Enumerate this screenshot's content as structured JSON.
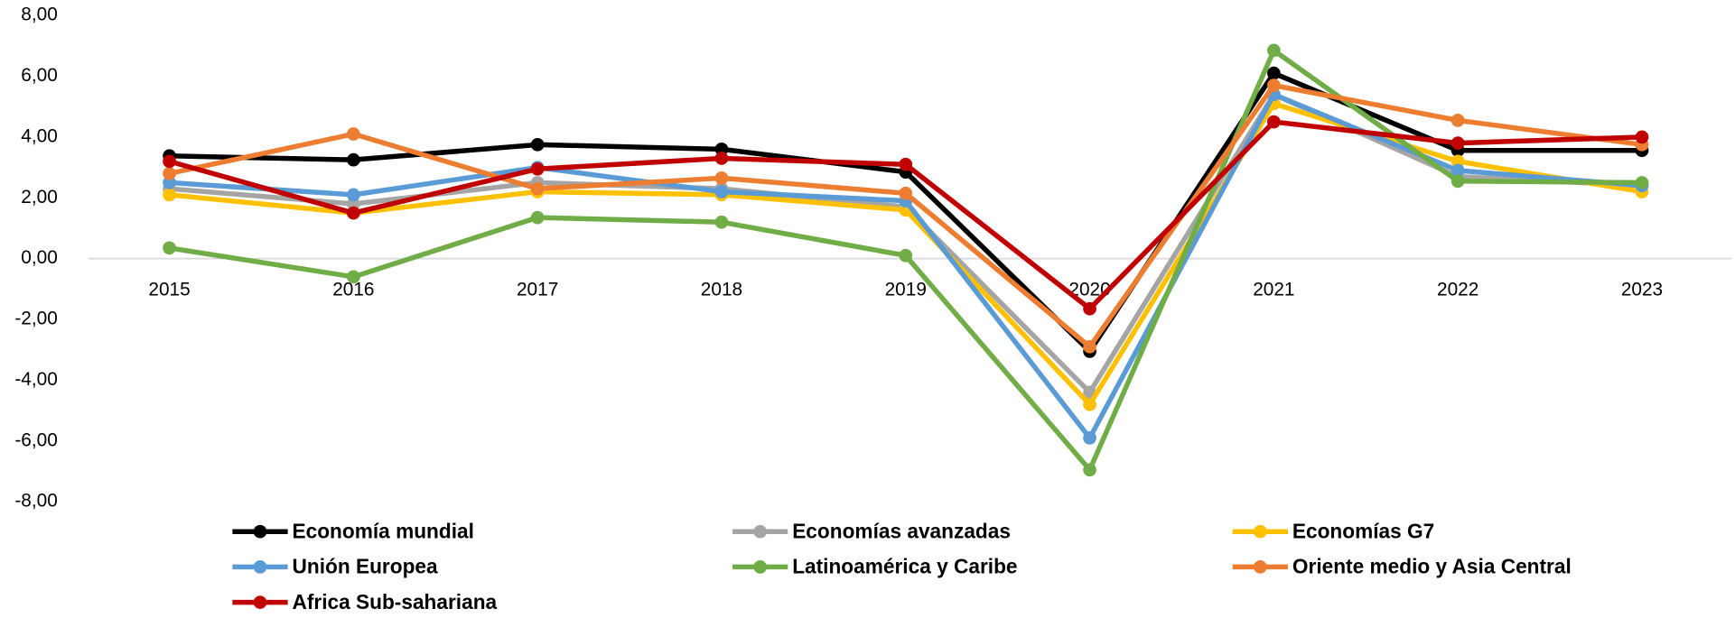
{
  "chart_data": {
    "type": "line",
    "categories": [
      "2015",
      "2016",
      "2017",
      "2018",
      "2019",
      "2020",
      "2021",
      "2022",
      "2023"
    ],
    "series": [
      {
        "name": "Economía mundial",
        "color": "#000000",
        "values": [
          3.38,
          3.25,
          3.75,
          3.6,
          2.85,
          -3.05,
          6.1,
          3.56,
          3.56
        ]
      },
      {
        "name": "Economías avanzadas",
        "color": "#a5a5a5",
        "values": [
          2.3,
          1.8,
          2.5,
          2.3,
          1.7,
          -4.4,
          5.4,
          2.7,
          2.4
        ]
      },
      {
        "name": "Economías G7",
        "color": "#ffc000",
        "values": [
          2.1,
          1.5,
          2.2,
          2.1,
          1.6,
          -4.8,
          5.1,
          3.2,
          2.2
        ]
      },
      {
        "name": "Unión Europea",
        "color": "#5b9bd5",
        "values": [
          2.5,
          2.1,
          3.0,
          2.2,
          1.9,
          -5.9,
          5.4,
          2.9,
          2.4
        ]
      },
      {
        "name": "Latinoamérica y Caribe",
        "color": "#70ad47",
        "values": [
          0.35,
          -0.6,
          1.35,
          1.2,
          0.1,
          -6.95,
          6.85,
          2.55,
          2.5
        ]
      },
      {
        "name": "Oriente medio y Asia Central",
        "color": "#ed7d31",
        "values": [
          2.8,
          4.1,
          2.3,
          2.65,
          2.15,
          -2.9,
          5.7,
          4.55,
          3.75
        ]
      },
      {
        "name": "Africa Sub-sahariana",
        "color": "#c00000",
        "values": [
          3.2,
          1.5,
          2.95,
          3.3,
          3.1,
          -1.65,
          4.5,
          3.8,
          4.0
        ]
      }
    ],
    "ylim": [
      -8,
      8
    ],
    "yticks": [
      {
        "value": 8,
        "label": "8,00"
      },
      {
        "value": 6,
        "label": "6,00"
      },
      {
        "value": 4,
        "label": "4,00"
      },
      {
        "value": 2,
        "label": "2,00"
      },
      {
        "value": 0,
        "label": "0,00"
      },
      {
        "value": -2,
        "label": "-2,00"
      },
      {
        "value": -4,
        "label": "-4,00"
      },
      {
        "value": -6,
        "label": "-6,00"
      },
      {
        "value": -8,
        "label": "-8,00"
      }
    ],
    "grid": false,
    "legend": "bottom"
  }
}
